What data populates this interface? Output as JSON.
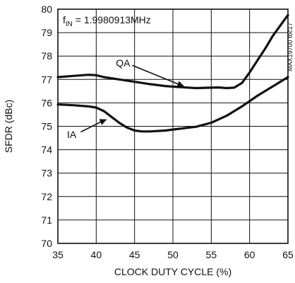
{
  "chart_data": {
    "type": "line",
    "xlabel": "CLOCK DUTY CYCLE (%)",
    "ylabel": "SFDR (dBc)",
    "xlim": [
      35,
      65
    ],
    "ylim": [
      70,
      80
    ],
    "xticks": [
      35,
      40,
      45,
      50,
      55,
      60,
      65
    ],
    "yticks": [
      70,
      71,
      72,
      73,
      74,
      75,
      76,
      77,
      78,
      79,
      80
    ],
    "grid": true,
    "annotation_freq": "f_IN = 1.9980913MHz",
    "annotation_parts": {
      "f": "f",
      "sub": "IN",
      "rest": " = 1.9980913MHz"
    },
    "side_code": "MAX19700 toc17",
    "series": [
      {
        "name": "QA",
        "label_at": [
          43.5,
          77.7
        ],
        "arrow_to": [
          51.5,
          76.7
        ],
        "x": [
          35,
          37,
          39,
          40,
          41,
          43,
          45,
          47,
          49,
          51,
          53,
          55,
          56,
          57,
          58,
          59,
          60,
          61,
          62,
          63,
          64,
          65
        ],
        "y": [
          77.1,
          77.15,
          77.2,
          77.18,
          77.1,
          77.0,
          76.9,
          76.8,
          76.72,
          76.67,
          76.63,
          76.65,
          76.66,
          76.63,
          76.65,
          76.85,
          77.3,
          77.8,
          78.3,
          78.85,
          79.3,
          79.75
        ]
      },
      {
        "name": "IA",
        "label_at": [
          36.8,
          74.65
        ],
        "arrow_to": [
          41.4,
          75.3
        ],
        "x": [
          35,
          37,
          39,
          40,
          41,
          42,
          43,
          44,
          45,
          46,
          47,
          49,
          51,
          53,
          55,
          57,
          59,
          61,
          63,
          65
        ],
        "y": [
          75.93,
          75.9,
          75.85,
          75.8,
          75.65,
          75.4,
          75.15,
          74.95,
          74.82,
          74.78,
          74.78,
          74.82,
          74.9,
          74.98,
          75.15,
          75.45,
          75.85,
          76.3,
          76.7,
          77.1
        ]
      }
    ]
  }
}
